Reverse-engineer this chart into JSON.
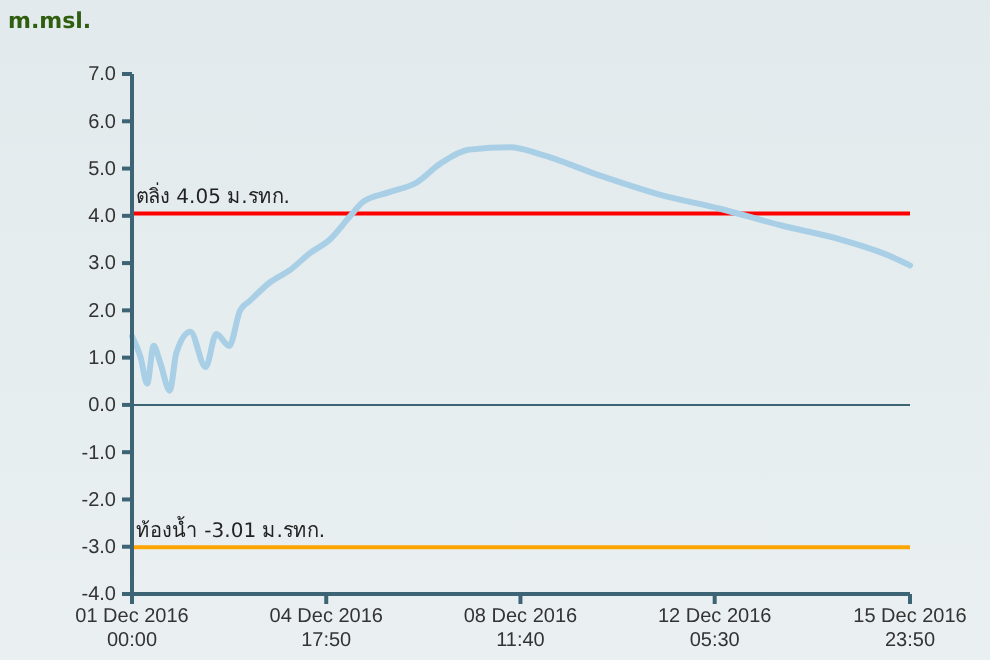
{
  "chart_data": {
    "type": "line",
    "ylabel": "m.msl.",
    "x": [
      "2016-12-01T00:00",
      "2016-12-01T04:00",
      "2016-12-01T07:00",
      "2016-12-01T10:00",
      "2016-12-01T13:00",
      "2016-12-01T17:30",
      "2016-12-01T20:30",
      "2016-12-02T03:00",
      "2016-12-02T10:00",
      "2016-12-02T15:00",
      "2016-12-02T21:00",
      "2016-12-03T02:00",
      "2016-12-03T06:30",
      "2016-12-03T16:00",
      "2016-12-04T01:00",
      "2016-12-04T10:00",
      "2016-12-04T19:30",
      "2016-12-05T05:00",
      "2016-12-05T11:00",
      "2016-12-05T23:00",
      "2016-12-06T11:30",
      "2016-12-06T22:30",
      "2016-12-07T12:00",
      "2016-12-08T07:00",
      "2016-12-08T21:00",
      "2016-12-10T00:30",
      "2016-12-11T04:00",
      "2016-12-12T08:00",
      "2016-12-13T12:00",
      "2016-12-14T15:30",
      "2016-12-15T14:30",
      "2016-12-15T23:50"
    ],
    "series": [
      {
        "color": "#a8cfe6",
        "values": [
          1.45,
          1.0,
          0.45,
          1.25,
          0.9,
          0.3,
          1.1,
          1.55,
          0.8,
          1.5,
          1.25,
          2.0,
          2.2,
          2.6,
          2.85,
          3.2,
          3.5,
          4.0,
          4.3,
          4.5,
          4.7,
          5.1,
          5.4,
          5.45,
          5.3,
          4.85,
          4.45,
          4.15,
          3.8,
          3.5,
          3.15,
          2.95
        ]
      }
    ],
    "xlim": [
      "2016-12-01T00:00",
      "2016-12-15T23:50"
    ],
    "xticks": [
      {
        "value": "2016-12-01T00:00",
        "label": "01 Dec 2016\n00:00"
      },
      {
        "value": "2016-12-04T17:50",
        "label": "04 Dec 2016\n17:50"
      },
      {
        "value": "2016-12-08T11:40",
        "label": "08 Dec 2016\n11:40"
      },
      {
        "value": "2016-12-12T05:30",
        "label": "12 Dec 2016\n05:30"
      },
      {
        "value": "2016-12-15T23:50",
        "label": "15 Dec 2016\n23:50"
      }
    ],
    "ylim": [
      -4,
      7
    ],
    "yticks": [
      {
        "value": -4,
        "label": "-4.0"
      },
      {
        "value": -3,
        "label": "-3.0"
      },
      {
        "value": -2,
        "label": "-2.0"
      },
      {
        "value": -1,
        "label": "-1.0"
      },
      {
        "value": 0,
        "label": "0.0"
      },
      {
        "value": 1,
        "label": "1.0"
      },
      {
        "value": 2,
        "label": "2.0"
      },
      {
        "value": 3,
        "label": "3.0"
      },
      {
        "value": 4,
        "label": "4.0"
      },
      {
        "value": 5,
        "label": "5.0"
      },
      {
        "value": 6,
        "label": "6.0"
      },
      {
        "value": 7,
        "label": "7.0"
      }
    ],
    "ref_lines": [
      {
        "axis": "y",
        "value": 4.05,
        "label": "ตลิ่ง 4.05 ม.รทก.",
        "color": "#ff0000"
      },
      {
        "axis": "y",
        "value": -3.01,
        "label": "ท้องน้ำ -3.01 ม.รทก.",
        "color": "#ffa500"
      },
      {
        "axis": "y",
        "value": 0,
        "color": "#3d6475"
      }
    ],
    "marker": "none",
    "line_style": "solid"
  }
}
